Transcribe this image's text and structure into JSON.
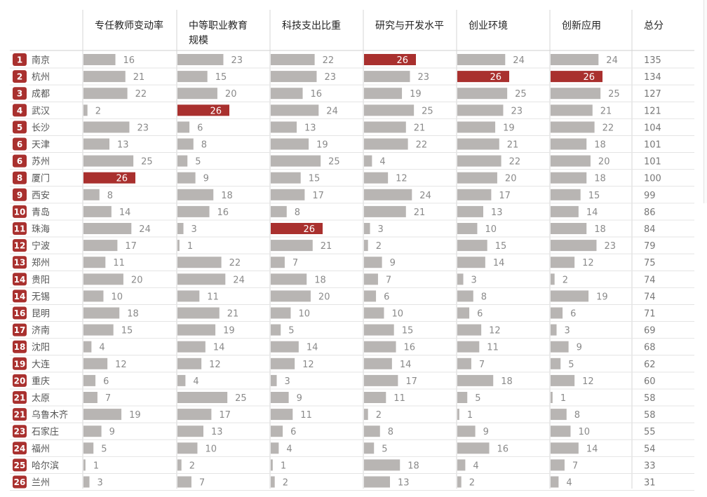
{
  "chart_data": {
    "type": "table",
    "columns": [
      "专任教师变动率",
      "中等职业教育规模",
      "科技支出比重",
      "研究与开发水平",
      "创业环境",
      "创新应用"
    ],
    "column_lines": [
      [
        "专任教师变动率"
      ],
      [
        "中等职业教育",
        "规模"
      ],
      [
        "科技支出比重"
      ],
      [
        "研究与开发水平"
      ],
      [
        "创业环境"
      ],
      [
        "创新应用"
      ]
    ],
    "total_header": "总分",
    "max_value": 26,
    "colors": {
      "bar": "#b8b5b3",
      "highlight": "#a9302e",
      "rank_badge": "#a9302e"
    },
    "rows": [
      {
        "rank": "1",
        "city": "南京",
        "values": [
          16,
          23,
          22,
          26,
          24,
          24
        ],
        "total": 135
      },
      {
        "rank": "2",
        "city": "杭州",
        "values": [
          21,
          15,
          23,
          23,
          26,
          26
        ],
        "total": 134
      },
      {
        "rank": "3",
        "city": "成都",
        "values": [
          22,
          20,
          16,
          19,
          25,
          25
        ],
        "total": 127
      },
      {
        "rank": "4",
        "city": "武汉",
        "values": [
          2,
          26,
          24,
          25,
          23,
          21
        ],
        "total": 121
      },
      {
        "rank": "5",
        "city": "长沙",
        "values": [
          23,
          6,
          13,
          21,
          19,
          22
        ],
        "total": 104
      },
      {
        "rank": "6",
        "city": "天津",
        "values": [
          13,
          8,
          19,
          22,
          21,
          18
        ],
        "total": 101
      },
      {
        "rank": "6",
        "city": "苏州",
        "values": [
          25,
          5,
          25,
          4,
          22,
          20
        ],
        "total": 101
      },
      {
        "rank": "8",
        "city": "厦门",
        "values": [
          26,
          9,
          15,
          12,
          20,
          18
        ],
        "total": 100
      },
      {
        "rank": "9",
        "city": "西安",
        "values": [
          8,
          18,
          17,
          24,
          17,
          15
        ],
        "total": 99
      },
      {
        "rank": "10",
        "city": "青岛",
        "values": [
          14,
          16,
          8,
          21,
          13,
          14
        ],
        "total": 86
      },
      {
        "rank": "11",
        "city": "珠海",
        "values": [
          24,
          3,
          26,
          3,
          10,
          18
        ],
        "total": 84
      },
      {
        "rank": "12",
        "city": "宁波",
        "values": [
          17,
          1,
          21,
          2,
          15,
          23
        ],
        "total": 79
      },
      {
        "rank": "13",
        "city": "郑州",
        "values": [
          11,
          22,
          7,
          9,
          14,
          12
        ],
        "total": 75
      },
      {
        "rank": "14",
        "city": "贵阳",
        "values": [
          20,
          24,
          18,
          7,
          3,
          2
        ],
        "total": 74
      },
      {
        "rank": "14",
        "city": "无锡",
        "values": [
          10,
          11,
          20,
          6,
          8,
          19
        ],
        "total": 74
      },
      {
        "rank": "16",
        "city": "昆明",
        "values": [
          18,
          21,
          10,
          10,
          6,
          6
        ],
        "total": 71
      },
      {
        "rank": "17",
        "city": "济南",
        "values": [
          15,
          19,
          5,
          15,
          12,
          3
        ],
        "total": 69
      },
      {
        "rank": "18",
        "city": "沈阳",
        "values": [
          4,
          14,
          14,
          16,
          11,
          9
        ],
        "total": 68
      },
      {
        "rank": "19",
        "city": "大连",
        "values": [
          12,
          12,
          12,
          14,
          7,
          5
        ],
        "total": 62
      },
      {
        "rank": "20",
        "city": "重庆",
        "values": [
          6,
          4,
          3,
          17,
          18,
          12
        ],
        "total": 60
      },
      {
        "rank": "21",
        "city": "太原",
        "values": [
          7,
          25,
          9,
          11,
          5,
          1
        ],
        "total": 58
      },
      {
        "rank": "21",
        "city": "乌鲁木齐",
        "values": [
          19,
          17,
          11,
          2,
          1,
          8
        ],
        "total": 58
      },
      {
        "rank": "23",
        "city": "石家庄",
        "values": [
          9,
          13,
          6,
          8,
          9,
          10
        ],
        "total": 55
      },
      {
        "rank": "24",
        "city": "福州",
        "values": [
          5,
          10,
          4,
          5,
          16,
          14
        ],
        "total": 54
      },
      {
        "rank": "25",
        "city": "哈尔滨",
        "values": [
          1,
          2,
          1,
          18,
          4,
          7
        ],
        "total": 33
      },
      {
        "rank": "26",
        "city": "兰州",
        "values": [
          3,
          7,
          2,
          13,
          2,
          4
        ],
        "total": 31
      }
    ]
  }
}
